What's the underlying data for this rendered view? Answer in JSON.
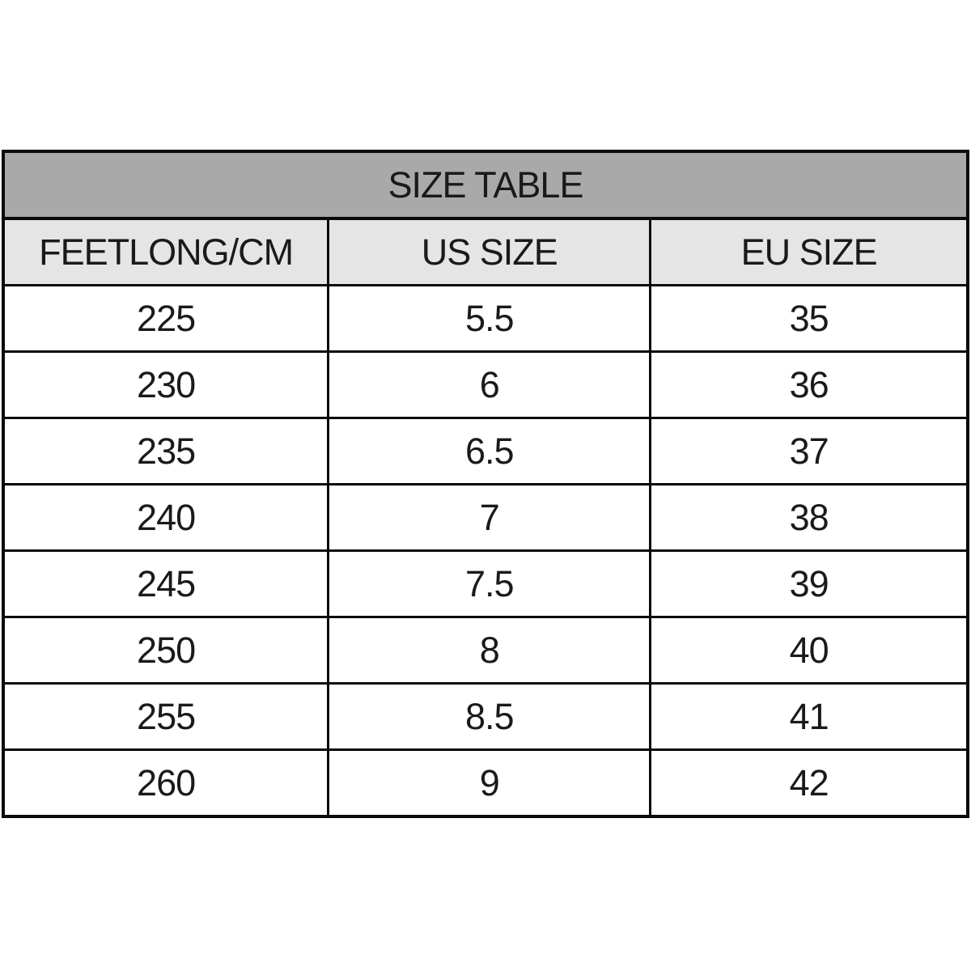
{
  "chart_data": {
    "type": "table",
    "title": "SIZE TABLE",
    "columns": [
      "FEETLONG/CM",
      "US SIZE",
      "EU SIZE"
    ],
    "rows": [
      [
        "225",
        "5.5",
        "35"
      ],
      [
        "230",
        "6",
        "36"
      ],
      [
        "235",
        "6.5",
        "37"
      ],
      [
        "240",
        "7",
        "38"
      ],
      [
        "245",
        "7.5",
        "39"
      ],
      [
        "250",
        "8",
        "40"
      ],
      [
        "255",
        "8.5",
        "41"
      ],
      [
        "260",
        "9",
        "42"
      ]
    ],
    "colors": {
      "title_bg": "#a9a9a9",
      "header_bg": "#e5e5e5",
      "row_bg": "#ffffff",
      "border": "#0a0a0a",
      "text": "#1a1a1a",
      "page_bg": "#ffffff"
    },
    "layout": {
      "title_row": true,
      "header_row": true,
      "grid": "all-borders",
      "text_align": "center"
    }
  }
}
